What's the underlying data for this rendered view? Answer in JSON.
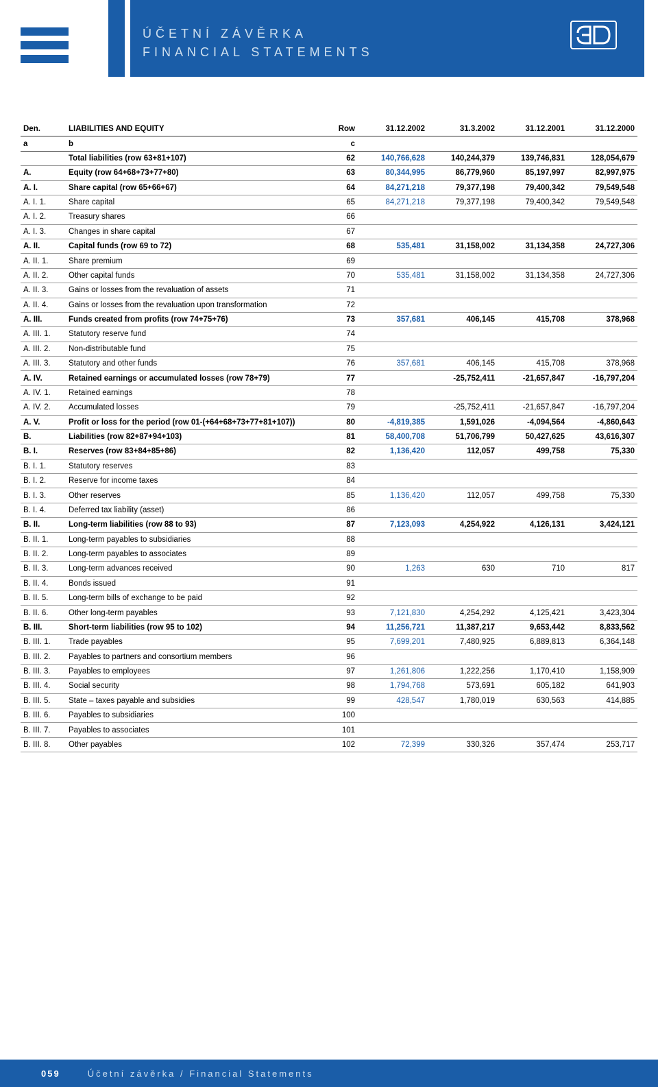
{
  "header": {
    "title_line1": "ÚČETNÍ ZÁVĚRKA",
    "title_line2": "FINANCIAL STATEMENTS"
  },
  "footer": {
    "page": "059",
    "text": "Účetní závěrka  /  Financial Statements"
  },
  "table": {
    "colors": {
      "highlight": "#1a5da8",
      "text": "#000000",
      "rule": "#9a9a9a"
    },
    "header_row1": {
      "c1": "Den.",
      "c2": "LIABILITIES AND EQUITY",
      "c3": "Row",
      "c4": "31.12.2002",
      "c5": "31.3.2002",
      "c6": "31.12.2001",
      "c7": "31.12.2000"
    },
    "header_row2": {
      "c1": "a",
      "c2": "b",
      "c3": "c",
      "c4": "",
      "c5": "",
      "c6": "",
      "c7": ""
    },
    "rows": [
      {
        "code": "",
        "label": "Total liabilities (row 63+81+107)",
        "row": "62",
        "v1": "140,766,628",
        "v2": "140,244,379",
        "v3": "139,746,831",
        "v4": "128,054,679",
        "bold": true
      },
      {
        "code": "A.",
        "label": "Equity (row 64+68+73+77+80)",
        "row": "63",
        "v1": "80,344,995",
        "v2": "86,779,960",
        "v3": "85,197,997",
        "v4": "82,997,975",
        "bold": true
      },
      {
        "code": "A. I.",
        "label": "Share capital (row 65+66+67)",
        "row": "64",
        "v1": "84,271,218",
        "v2": "79,377,198",
        "v3": "79,400,342",
        "v4": "79,549,548",
        "bold": true
      },
      {
        "code": "A. I.  1.",
        "label": "Share capital",
        "row": "65",
        "v1": "84,271,218",
        "v2": "79,377,198",
        "v3": "79,400,342",
        "v4": "79,549,548"
      },
      {
        "code": "A. I.  2.",
        "label": "Treasury shares",
        "row": "66",
        "v1": "",
        "v2": "",
        "v3": "",
        "v4": ""
      },
      {
        "code": "A. I.  3.",
        "label": "Changes in share capital",
        "row": "67",
        "v1": "",
        "v2": "",
        "v3": "",
        "v4": ""
      },
      {
        "code": "A. II.",
        "label": "Capital funds (row 69 to 72)",
        "row": "68",
        "v1": "535,481",
        "v2": "31,158,002",
        "v3": "31,134,358",
        "v4": "24,727,306",
        "bold": true
      },
      {
        "code": "A. II. 1.",
        "label": "Share premium",
        "row": "69",
        "v1": "",
        "v2": "",
        "v3": "",
        "v4": ""
      },
      {
        "code": "A. II. 2.",
        "label": "Other capital funds",
        "row": "70",
        "v1": "535,481",
        "v2": "31,158,002",
        "v3": "31,134,358",
        "v4": "24,727,306"
      },
      {
        "code": "A. II. 3.",
        "label": "Gains or losses from the revaluation of assets",
        "row": "71",
        "v1": "",
        "v2": "",
        "v3": "",
        "v4": ""
      },
      {
        "code": "A. II. 4.",
        "label": "Gains or losses from the revaluation upon transformation",
        "row": "72",
        "v1": "",
        "v2": "",
        "v3": "",
        "v4": ""
      },
      {
        "code": "A. III.",
        "label": "Funds created from profits (row 74+75+76)",
        "row": "73",
        "v1": "357,681",
        "v2": "406,145",
        "v3": "415,708",
        "v4": "378,968",
        "bold": true
      },
      {
        "code": "A. III. 1.",
        "label": "Statutory reserve fund",
        "row": "74",
        "v1": "",
        "v2": "",
        "v3": "",
        "v4": ""
      },
      {
        "code": "A. III. 2.",
        "label": "Non-distributable fund",
        "row": "75",
        "v1": "",
        "v2": "",
        "v3": "",
        "v4": ""
      },
      {
        "code": "A. III. 3.",
        "label": "Statutory and other funds",
        "row": "76",
        "v1": "357,681",
        "v2": "406,145",
        "v3": "415,708",
        "v4": "378,968"
      },
      {
        "code": "A. IV.",
        "label": "Retained earnings or accumulated losses (row 78+79)",
        "row": "77",
        "v1": "",
        "v2": "-25,752,411",
        "v3": "-21,657,847",
        "v4": "-16,797,204",
        "bold": true
      },
      {
        "code": "A. IV. 1.",
        "label": "Retained earnings",
        "row": "78",
        "v1": "",
        "v2": "",
        "v3": "",
        "v4": ""
      },
      {
        "code": "A. IV. 2.",
        "label": "Accumulated losses",
        "row": "79",
        "v1": "",
        "v2": "-25,752,411",
        "v3": "-21,657,847",
        "v4": "-16,797,204"
      },
      {
        "code": "A. V.",
        "label": "Profit or loss for the period (row 01-(+64+68+73+77+81+107))",
        "row": "80",
        "v1": "-4,819,385",
        "v2": "1,591,026",
        "v3": "-4,094,564",
        "v4": "-4,860,643",
        "bold": true
      },
      {
        "code": "B.",
        "label": "Liabilities (row 82+87+94+103)",
        "row": "81",
        "v1": "58,400,708",
        "v2": "51,706,799",
        "v3": "50,427,625",
        "v4": "43,616,307",
        "bold": true
      },
      {
        "code": "B. I.",
        "label": "Reserves (row 83+84+85+86)",
        "row": "82",
        "v1": "1,136,420",
        "v2": "112,057",
        "v3": "499,758",
        "v4": "75,330",
        "bold": true
      },
      {
        "code": "B. I.  1.",
        "label": "Statutory reserves",
        "row": "83",
        "v1": "",
        "v2": "",
        "v3": "",
        "v4": ""
      },
      {
        "code": "B. I.  2.",
        "label": "Reserve for income taxes",
        "row": "84",
        "v1": "",
        "v2": "",
        "v3": "",
        "v4": ""
      },
      {
        "code": "B. I.  3.",
        "label": "Other reserves",
        "row": "85",
        "v1": "1,136,420",
        "v2": "112,057",
        "v3": "499,758",
        "v4": "75,330"
      },
      {
        "code": "B. I.  4.",
        "label": "Deferred tax liability (asset)",
        "row": "86",
        "v1": "",
        "v2": "",
        "v3": "",
        "v4": ""
      },
      {
        "code": "B. II.",
        "label": "Long-term liabilities (row 88 to 93)",
        "row": "87",
        "v1": "7,123,093",
        "v2": "4,254,922",
        "v3": "4,126,131",
        "v4": "3,424,121",
        "bold": true
      },
      {
        "code": "B. II. 1.",
        "label": "Long-term payables to subsidiaries",
        "row": "88",
        "v1": "",
        "v2": "",
        "v3": "",
        "v4": ""
      },
      {
        "code": "B. II. 2.",
        "label": "Long-term payables to associates",
        "row": "89",
        "v1": "",
        "v2": "",
        "v3": "",
        "v4": ""
      },
      {
        "code": "B. II. 3.",
        "label": "Long-term advances received",
        "row": "90",
        "v1": "1,263",
        "v2": "630",
        "v3": "710",
        "v4": "817"
      },
      {
        "code": "B. II. 4.",
        "label": "Bonds issued",
        "row": "91",
        "v1": "",
        "v2": "",
        "v3": "",
        "v4": ""
      },
      {
        "code": "B. II. 5.",
        "label": "Long-term bills of exchange to be paid",
        "row": "92",
        "v1": "",
        "v2": "",
        "v3": "",
        "v4": ""
      },
      {
        "code": "B. II. 6.",
        "label": "Other long-term payables",
        "row": "93",
        "v1": "7,121,830",
        "v2": "4,254,292",
        "v3": "4,125,421",
        "v4": "3,423,304"
      },
      {
        "code": "B. III.",
        "label": "Short-term liabilities (row 95 to 102)",
        "row": "94",
        "v1": "11,256,721",
        "v2": "11,387,217",
        "v3": "9,653,442",
        "v4": "8,833,562",
        "bold": true
      },
      {
        "code": "B. III. 1.",
        "label": "Trade payables",
        "row": "95",
        "v1": "7,699,201",
        "v2": "7,480,925",
        "v3": "6,889,813",
        "v4": "6,364,148"
      },
      {
        "code": "B. III. 2.",
        "label": "Payables to partners and consortium members",
        "row": "96",
        "v1": "",
        "v2": "",
        "v3": "",
        "v4": ""
      },
      {
        "code": "B. III. 3.",
        "label": "Payables to employees",
        "row": "97",
        "v1": "1,261,806",
        "v2": "1,222,256",
        "v3": "1,170,410",
        "v4": "1,158,909"
      },
      {
        "code": "B. III. 4.",
        "label": "Social security",
        "row": "98",
        "v1": "1,794,768",
        "v2": "573,691",
        "v3": "605,182",
        "v4": "641,903"
      },
      {
        "code": "B. III. 5.",
        "label": "State – taxes payable and subsidies",
        "row": "99",
        "v1": "428,547",
        "v2": "1,780,019",
        "v3": "630,563",
        "v4": "414,885"
      },
      {
        "code": "B. III. 6.",
        "label": "Payables to subsidiaries",
        "row": "100",
        "v1": "",
        "v2": "",
        "v3": "",
        "v4": ""
      },
      {
        "code": "B. III. 7.",
        "label": "Payables to associates",
        "row": "101",
        "v1": "",
        "v2": "",
        "v3": "",
        "v4": ""
      },
      {
        "code": "B. III. 8.",
        "label": "Other payables",
        "row": "102",
        "v1": "72,399",
        "v2": "330,326",
        "v3": "357,474",
        "v4": "253,717"
      }
    ]
  }
}
